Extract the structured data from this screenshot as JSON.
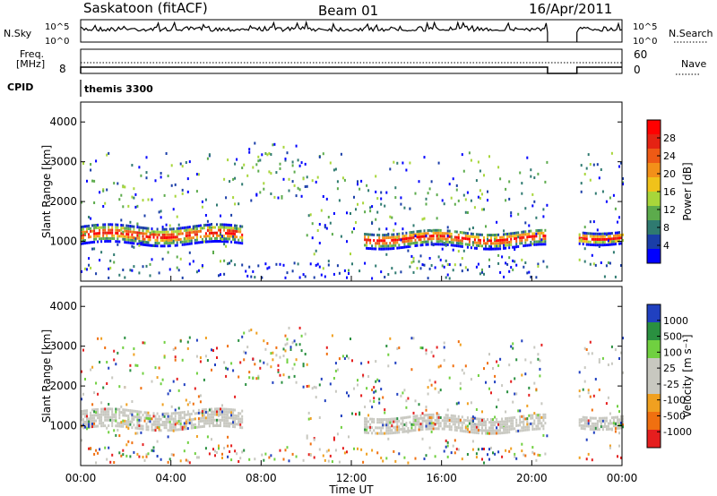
{
  "header": {
    "title": "Saskatoon (fitACF)",
    "beam": "Beam 01",
    "date": "16/Apr/2011"
  },
  "scan_panel": {
    "left_label": "N.Sky",
    "right_label": "N.Search",
    "left_ticks": [
      "10^5",
      "10^0"
    ],
    "right_ticks": [
      "10^5",
      "10^0"
    ]
  },
  "freq_panel": {
    "left_label_1": "Freq.",
    "left_label_2": "[MHz]",
    "right_label": "Nave",
    "left_ticks": [
      "8"
    ],
    "right_ticks": [
      "60",
      "0"
    ]
  },
  "cpid_panel": {
    "label": "CPID",
    "value": "themis 3300"
  },
  "chart_data": [
    {
      "type": "heatmap",
      "quantity": "Power",
      "ylabel": "Slant Range [km]",
      "colorbar_label": "Power [dB]",
      "colorbar_ticks": [
        "28",
        "24",
        "20",
        "16",
        "12",
        "8",
        "4"
      ],
      "yticks": [
        "4000",
        "3000",
        "2000",
        "1000"
      ],
      "ylim": [
        0,
        4500
      ],
      "colors": [
        "#0000ff",
        "#1a3ea8",
        "#2f7a70",
        "#5cab4c",
        "#a8d63a",
        "#f0c21a",
        "#f39019",
        "#ee5a15",
        "#e52313",
        "#ff0000"
      ],
      "data_gap_hours": [
        20.7,
        22.0
      ],
      "echo_bands": [
        {
          "t_start": 0.0,
          "t_end": 7.2,
          "range_center_km": 1200,
          "range_width_km": 450
        },
        {
          "t_start": 12.5,
          "t_end": 20.6,
          "range_center_km": 1100,
          "range_width_km": 400
        },
        {
          "t_start": 22.0,
          "t_end": 24.0,
          "range_center_km": 1150,
          "range_width_km": 300
        }
      ]
    },
    {
      "type": "heatmap",
      "quantity": "Velocity",
      "ylabel": "Slant Range [km]",
      "xlabel": "Time UT",
      "colorbar_label": "Velocity [m s⁻¹]",
      "colorbar_ticks": [
        "1000",
        "500",
        "100",
        "25",
        "-25",
        "-100",
        "-500",
        "-1000"
      ],
      "yticks": [
        "4000",
        "3000",
        "2000",
        "1000"
      ],
      "xticks": [
        "00:00",
        "04:00",
        "08:00",
        "12:00",
        "16:00",
        "20:00",
        "00:00"
      ],
      "xlim": [
        0,
        24
      ],
      "ylim": [
        0,
        4500
      ],
      "colors": [
        "#e51e1e",
        "#f07010",
        "#f0a020",
        "#c8c8c0",
        "#c8c8c0",
        "#70d040",
        "#2a9040",
        "#2040c0"
      ],
      "ground_scatter_color": "#c8c8c0"
    }
  ]
}
